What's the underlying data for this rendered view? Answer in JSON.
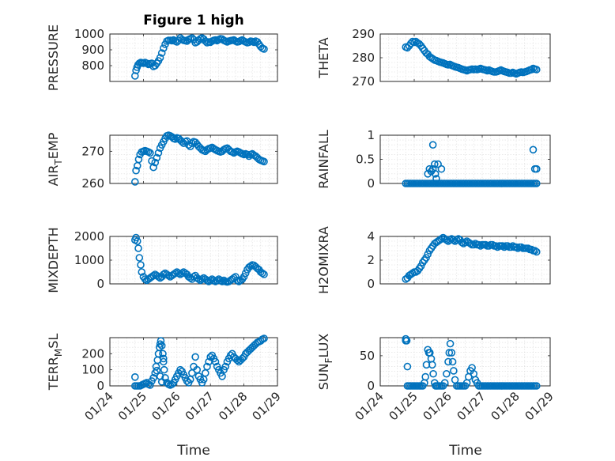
{
  "figure_title": "Figure 1 high",
  "marker_color": "#0072BD",
  "time_axis": {
    "label": "Time",
    "ticks": [
      "01/24",
      "01/25",
      "01/26",
      "01/27",
      "01/28",
      "01/29"
    ],
    "range_days": [
      0,
      5
    ]
  },
  "chart_data": [
    {
      "type": "scatter",
      "id": "pressure",
      "ylabel": "PRESSURE",
      "title": "Figure 1 high",
      "ylim": [
        700,
        1000
      ],
      "yticks": [
        800,
        900,
        1000
      ],
      "grid": true,
      "x": [
        0.75,
        0.78,
        0.81,
        0.84,
        0.88,
        0.92,
        0.96,
        1.0,
        1.05,
        1.1,
        1.15,
        1.2,
        1.25,
        1.3,
        1.35,
        1.4,
        1.45,
        1.5,
        1.55,
        1.6,
        1.65,
        1.7,
        1.75,
        1.8,
        1.85,
        1.9,
        1.95,
        2.0,
        2.05,
        2.1,
        2.15,
        2.2,
        2.25,
        2.3,
        2.35,
        2.4,
        2.45,
        2.5,
        2.55,
        2.6,
        2.65,
        2.7,
        2.75,
        2.8,
        2.85,
        2.9,
        2.95,
        3.0,
        3.05,
        3.1,
        3.15,
        3.2,
        3.25,
        3.3,
        3.35,
        3.4,
        3.45,
        3.5,
        3.55,
        3.6,
        3.65,
        3.7,
        3.75,
        3.8,
        3.85,
        3.9,
        3.95,
        4.0,
        4.05,
        4.1,
        4.15,
        4.2,
        4.25,
        4.3,
        4.35,
        4.4,
        4.45,
        4.5,
        4.55,
        4.6
      ],
      "y": [
        735,
        770,
        790,
        805,
        815,
        820,
        818,
        815,
        820,
        815,
        808,
        812,
        815,
        795,
        800,
        815,
        830,
        850,
        880,
        910,
        935,
        955,
        960,
        960,
        958,
        962,
        955,
        950,
        960,
        975,
        965,
        960,
        958,
        955,
        965,
        970,
        975,
        965,
        945,
        950,
        960,
        970,
        975,
        968,
        955,
        945,
        950,
        948,
        955,
        960,
        962,
        958,
        965,
        970,
        968,
        960,
        955,
        950,
        955,
        958,
        960,
        962,
        955,
        950,
        952,
        958,
        962,
        955,
        950,
        945,
        948,
        955,
        952,
        948,
        955,
        950,
        935,
        920,
        910,
        905
      ]
    },
    {
      "type": "scatter",
      "id": "theta",
      "ylabel": "THETA",
      "ylim": [
        270,
        290
      ],
      "yticks": [
        270,
        280,
        290
      ],
      "grid": true,
      "x": [
        0.75,
        0.8,
        0.85,
        0.9,
        0.95,
        1.0,
        1.05,
        1.1,
        1.15,
        1.2,
        1.25,
        1.3,
        1.35,
        1.4,
        1.45,
        1.5,
        1.55,
        1.6,
        1.65,
        1.7,
        1.75,
        1.8,
        1.85,
        1.9,
        1.95,
        2.0,
        2.05,
        2.1,
        2.15,
        2.2,
        2.25,
        2.3,
        2.35,
        2.4,
        2.45,
        2.5,
        2.55,
        2.6,
        2.65,
        2.7,
        2.75,
        2.8,
        2.85,
        2.9,
        2.95,
        3.0,
        3.05,
        3.1,
        3.15,
        3.2,
        3.25,
        3.3,
        3.35,
        3.4,
        3.45,
        3.5,
        3.55,
        3.6,
        3.65,
        3.7,
        3.75,
        3.8,
        3.85,
        3.9,
        3.95,
        4.0,
        4.05,
        4.1,
        4.15,
        4.2,
        4.25,
        4.3,
        4.35,
        4.4,
        4.45,
        4.5,
        4.55,
        4.6
      ],
      "y": [
        284.5,
        284.2,
        285.0,
        286.0,
        286.8,
        286.5,
        286.8,
        286.2,
        285.8,
        285.0,
        284.0,
        283.0,
        282.0,
        281.5,
        280.5,
        280.0,
        279.5,
        279.0,
        278.8,
        278.5,
        278.2,
        278.0,
        277.8,
        277.5,
        277.2,
        277.0,
        277.2,
        276.8,
        276.5,
        276.2,
        276.0,
        275.8,
        275.5,
        275.2,
        275.0,
        274.8,
        274.5,
        274.8,
        275.0,
        275.2,
        275.0,
        275.2,
        275.0,
        275.2,
        275.5,
        275.2,
        275.0,
        274.8,
        274.5,
        274.8,
        274.5,
        274.2,
        274.0,
        274.0,
        274.2,
        274.5,
        274.8,
        274.5,
        274.2,
        274.0,
        273.8,
        273.5,
        273.5,
        273.8,
        273.5,
        273.2,
        273.5,
        273.8,
        274.0,
        273.8,
        274.0,
        274.2,
        274.5,
        274.8,
        275.0,
        275.5,
        275.2,
        275.0
      ]
    },
    {
      "type": "scatter",
      "id": "air_temp",
      "ylabel": "AIR_TEMP",
      "ylim": [
        260,
        275
      ],
      "yticks": [
        260,
        270
      ],
      "grid": true,
      "x": [
        0.75,
        0.78,
        0.82,
        0.86,
        0.9,
        0.95,
        1.0,
        1.05,
        1.1,
        1.15,
        1.2,
        1.25,
        1.3,
        1.35,
        1.4,
        1.45,
        1.5,
        1.55,
        1.6,
        1.65,
        1.7,
        1.75,
        1.8,
        1.85,
        1.9,
        1.95,
        2.0,
        2.05,
        2.1,
        2.15,
        2.2,
        2.25,
        2.3,
        2.35,
        2.4,
        2.45,
        2.5,
        2.55,
        2.6,
        2.65,
        2.7,
        2.75,
        2.8,
        2.85,
        2.9,
        2.95,
        3.0,
        3.05,
        3.1,
        3.15,
        3.2,
        3.25,
        3.3,
        3.35,
        3.4,
        3.45,
        3.5,
        3.55,
        3.6,
        3.65,
        3.7,
        3.75,
        3.8,
        3.85,
        3.9,
        3.95,
        4.0,
        4.05,
        4.1,
        4.15,
        4.2,
        4.25,
        4.3,
        4.35,
        4.4,
        4.45,
        4.5,
        4.55,
        4.6
      ],
      "y": [
        260.5,
        264.0,
        265.5,
        267.5,
        269.0,
        269.8,
        270.0,
        270.2,
        270.0,
        269.8,
        269.5,
        267.0,
        265.0,
        266.5,
        268.0,
        269.5,
        271.0,
        272.0,
        273.0,
        274.0,
        274.8,
        275.0,
        274.8,
        274.5,
        274.0,
        273.8,
        274.2,
        274.0,
        273.5,
        273.0,
        272.5,
        273.0,
        273.2,
        272.0,
        271.5,
        272.5,
        273.0,
        272.8,
        272.2,
        271.5,
        271.0,
        270.5,
        270.2,
        270.0,
        270.5,
        270.8,
        271.0,
        271.2,
        270.8,
        270.5,
        270.2,
        270.0,
        269.8,
        270.0,
        270.5,
        270.8,
        271.0,
        270.5,
        270.0,
        269.8,
        269.5,
        269.8,
        270.0,
        269.8,
        269.5,
        269.2,
        269.0,
        269.2,
        269.0,
        268.5,
        269.0,
        269.2,
        268.8,
        268.5,
        268.0,
        267.5,
        267.2,
        267.0,
        266.8
      ]
    },
    {
      "type": "scatter",
      "id": "rainfall",
      "ylabel": "RAINFALL",
      "ylim": [
        0,
        1
      ],
      "yticks": [
        0,
        0.5,
        1
      ],
      "ytick_labels": [
        "0",
        "0.5",
        "1"
      ],
      "grid": true,
      "x": [
        0.75,
        0.8,
        0.85,
        0.9,
        0.95,
        1.0,
        1.05,
        1.1,
        1.15,
        1.2,
        1.25,
        1.3,
        1.35,
        1.4,
        1.45,
        1.5,
        1.55,
        1.6,
        1.65,
        1.7,
        1.75,
        1.8,
        1.85,
        1.9,
        1.95,
        2.0,
        2.05,
        2.1,
        2.15,
        2.2,
        2.25,
        2.3,
        2.35,
        2.4,
        2.45,
        2.5,
        2.55,
        2.6,
        2.65,
        2.7,
        2.75,
        2.8,
        2.85,
        2.9,
        2.95,
        3.0,
        3.05,
        3.1,
        3.15,
        3.2,
        3.25,
        3.3,
        3.35,
        3.4,
        3.45,
        3.5,
        3.55,
        3.6,
        3.65,
        3.7,
        3.75,
        3.8,
        3.85,
        3.9,
        3.95,
        4.0,
        4.05,
        4.1,
        4.15,
        4.2,
        4.25,
        4.3,
        4.35,
        4.4,
        4.45,
        4.5,
        4.55,
        4.6,
        1.4,
        1.45,
        1.5,
        1.55,
        1.55,
        1.6,
        1.62,
        1.65,
        1.7,
        1.8,
        4.5,
        4.55,
        4.6
      ],
      "y": [
        0,
        0,
        0,
        0,
        0,
        0,
        0,
        0,
        0,
        0,
        0,
        0,
        0,
        0,
        0,
        0,
        0,
        0,
        0,
        0,
        0,
        0,
        0,
        0,
        0,
        0,
        0,
        0,
        0,
        0,
        0,
        0,
        0,
        0,
        0,
        0,
        0,
        0,
        0,
        0,
        0,
        0,
        0,
        0,
        0,
        0,
        0,
        0,
        0,
        0,
        0,
        0,
        0,
        0,
        0,
        0,
        0,
        0,
        0,
        0,
        0,
        0,
        0,
        0,
        0,
        0,
        0,
        0,
        0,
        0,
        0,
        0,
        0,
        0,
        0,
        0,
        0,
        0,
        0.2,
        0.3,
        0.25,
        0.3,
        0.8,
        0.4,
        0.2,
        0.1,
        0.4,
        0.3,
        0.7,
        0.3,
        0.3
      ]
    },
    {
      "type": "scatter",
      "id": "mixdepth",
      "ylabel": "MIXDEPTH",
      "ylim": [
        0,
        2000
      ],
      "yticks": [
        0,
        1000,
        2000
      ],
      "grid": true,
      "x": [
        0.75,
        0.78,
        0.82,
        0.85,
        0.88,
        0.92,
        0.95,
        1.0,
        1.05,
        1.1,
        1.15,
        1.2,
        1.25,
        1.3,
        1.35,
        1.4,
        1.45,
        1.5,
        1.55,
        1.6,
        1.65,
        1.7,
        1.75,
        1.8,
        1.85,
        1.9,
        1.95,
        2.0,
        2.05,
        2.1,
        2.15,
        2.2,
        2.25,
        2.3,
        2.35,
        2.4,
        2.45,
        2.5,
        2.55,
        2.6,
        2.65,
        2.7,
        2.75,
        2.8,
        2.85,
        2.9,
        2.95,
        3.0,
        3.05,
        3.1,
        3.15,
        3.2,
        3.25,
        3.3,
        3.35,
        3.4,
        3.45,
        3.5,
        3.55,
        3.6,
        3.65,
        3.7,
        3.75,
        3.8,
        3.85,
        3.9,
        3.95,
        4.0,
        4.05,
        4.1,
        4.15,
        4.2,
        4.25,
        4.3,
        4.35,
        4.4,
        4.45,
        4.5,
        4.55,
        4.6
      ],
      "y": [
        1850,
        1950,
        1800,
        1500,
        1100,
        800,
        500,
        300,
        200,
        150,
        200,
        250,
        300,
        350,
        400,
        350,
        300,
        250,
        300,
        400,
        450,
        400,
        350,
        300,
        350,
        400,
        450,
        500,
        450,
        400,
        450,
        500,
        450,
        400,
        300,
        250,
        200,
        300,
        350,
        250,
        200,
        150,
        200,
        250,
        200,
        150,
        100,
        150,
        200,
        150,
        100,
        150,
        200,
        150,
        100,
        150,
        100,
        80,
        100,
        150,
        200,
        250,
        300,
        150,
        100,
        150,
        200,
        300,
        450,
        600,
        700,
        750,
        800,
        780,
        720,
        650,
        600,
        500,
        450,
        400
      ]
    },
    {
      "type": "scatter",
      "id": "h2omixra",
      "ylabel": "H2OMIXRA",
      "ylim": [
        0,
        4
      ],
      "yticks": [
        0,
        2,
        4
      ],
      "grid": true,
      "x": [
        0.75,
        0.8,
        0.85,
        0.9,
        0.95,
        1.0,
        1.05,
        1.1,
        1.15,
        1.2,
        1.25,
        1.3,
        1.35,
        1.4,
        1.45,
        1.5,
        1.55,
        1.6,
        1.65,
        1.7,
        1.75,
        1.8,
        1.85,
        1.9,
        1.95,
        2.0,
        2.05,
        2.1,
        2.15,
        2.2,
        2.25,
        2.3,
        2.35,
        2.4,
        2.45,
        2.5,
        2.55,
        2.6,
        2.65,
        2.7,
        2.75,
        2.8,
        2.85,
        2.9,
        2.95,
        3.0,
        3.05,
        3.1,
        3.15,
        3.2,
        3.25,
        3.3,
        3.35,
        3.4,
        3.45,
        3.5,
        3.55,
        3.6,
        3.65,
        3.7,
        3.75,
        3.8,
        3.85,
        3.9,
        3.95,
        4.0,
        4.05,
        4.1,
        4.15,
        4.2,
        4.25,
        4.3,
        4.35,
        4.4,
        4.45,
        4.5,
        4.55,
        4.6
      ],
      "y": [
        0.4,
        0.5,
        0.7,
        0.8,
        0.9,
        1.0,
        1.0,
        1.1,
        1.3,
        1.5,
        1.8,
        2.0,
        2.2,
        2.5,
        2.8,
        3.0,
        3.2,
        3.4,
        3.5,
        3.6,
        3.7,
        3.8,
        3.9,
        3.8,
        3.7,
        3.6,
        3.7,
        3.8,
        3.7,
        3.6,
        3.7,
        3.8,
        3.7,
        3.5,
        3.4,
        3.5,
        3.6,
        3.5,
        3.4,
        3.3,
        3.3,
        3.4,
        3.3,
        3.3,
        3.2,
        3.3,
        3.3,
        3.3,
        3.2,
        3.2,
        3.3,
        3.3,
        3.2,
        3.2,
        3.1,
        3.2,
        3.2,
        3.2,
        3.1,
        3.2,
        3.2,
        3.1,
        3.1,
        3.2,
        3.1,
        3.1,
        3.0,
        3.1,
        3.1,
        3.0,
        3.0,
        3.0,
        3.0,
        2.9,
        2.9,
        2.8,
        2.8,
        2.7
      ]
    },
    {
      "type": "scatter",
      "id": "terr_msl",
      "ylabel": "TERR_MSL",
      "ylim": [
        0,
        300
      ],
      "yticks": [
        0,
        100,
        200
      ],
      "grid": true,
      "x": [
        0.75,
        0.8,
        0.85,
        0.9,
        0.95,
        1.0,
        1.05,
        1.1,
        1.15,
        1.2,
        1.25,
        1.3,
        1.35,
        1.38,
        1.42,
        1.45,
        1.48,
        1.5,
        1.52,
        1.55,
        1.58,
        1.6,
        1.62,
        1.65,
        1.7,
        1.75,
        1.8,
        1.85,
        1.9,
        1.95,
        2.0,
        2.05,
        2.1,
        2.15,
        2.2,
        2.25,
        2.3,
        2.35,
        2.4,
        2.45,
        2.5,
        2.55,
        2.6,
        2.65,
        2.7,
        2.75,
        2.8,
        2.85,
        2.9,
        2.95,
        3.0,
        3.05,
        3.1,
        3.15,
        3.2,
        3.25,
        3.3,
        3.35,
        3.4,
        3.45,
        3.5,
        3.55,
        3.6,
        3.65,
        3.7,
        3.75,
        3.8,
        3.85,
        3.9,
        3.95,
        4.0,
        4.05,
        4.1,
        4.15,
        4.2,
        4.25,
        4.3,
        4.35,
        4.4,
        4.45,
        4.5,
        4.55,
        4.6,
        0.75,
        1.4,
        1.5,
        1.55,
        1.6
      ],
      "y": [
        0,
        0,
        0,
        0,
        5,
        10,
        15,
        20,
        10,
        5,
        30,
        50,
        80,
        120,
        160,
        200,
        240,
        260,
        280,
        250,
        200,
        150,
        100,
        50,
        20,
        10,
        5,
        10,
        20,
        40,
        60,
        80,
        100,
        90,
        70,
        50,
        30,
        20,
        40,
        80,
        120,
        180,
        100,
        60,
        40,
        20,
        40,
        80,
        120,
        150,
        180,
        190,
        170,
        150,
        120,
        100,
        80,
        60,
        100,
        120,
        150,
        170,
        190,
        200,
        180,
        170,
        160,
        150,
        160,
        170,
        180,
        200,
        210,
        220,
        230,
        240,
        250,
        260,
        270,
        275,
        280,
        290,
        295,
        55,
        95,
        60,
        25,
        170
      ],
      "ylabel_display": "TERR_MSL"
    },
    {
      "type": "scatter",
      "id": "sun_flux",
      "ylabel": "SUN_FLUX",
      "ylim": [
        0,
        80
      ],
      "yticks": [
        0,
        50
      ],
      "grid": true,
      "x": [
        0.75,
        0.8,
        0.85,
        0.9,
        0.95,
        1.0,
        1.05,
        1.1,
        1.15,
        1.2,
        1.25,
        1.3,
        1.33,
        1.36,
        1.4,
        1.43,
        1.46,
        1.5,
        1.53,
        1.56,
        1.6,
        1.63,
        1.66,
        1.7,
        1.75,
        1.8,
        1.85,
        1.9,
        1.95,
        2.0,
        2.03,
        2.06,
        2.1,
        2.13,
        2.16,
        2.2,
        2.25,
        2.3,
        2.35,
        2.4,
        2.45,
        2.5,
        2.55,
        2.6,
        2.65,
        2.7,
        2.75,
        2.8,
        2.85,
        2.9,
        2.95,
        3.0,
        3.05,
        3.1,
        3.15,
        3.2,
        3.25,
        3.3,
        3.35,
        3.4,
        3.45,
        3.5,
        3.55,
        3.6,
        3.65,
        3.7,
        3.75,
        3.8,
        3.85,
        3.9,
        3.95,
        4.0,
        4.05,
        4.1,
        4.15,
        4.2,
        4.25,
        4.3,
        4.35,
        4.4,
        4.45,
        4.5,
        4.55,
        4.6,
        0.75,
        0.78,
        0.8
      ],
      "y": [
        75,
        32,
        0,
        0,
        0,
        0,
        0,
        0,
        0,
        0,
        0,
        5,
        15,
        35,
        60,
        55,
        55,
        45,
        35,
        20,
        5,
        0,
        0,
        0,
        0,
        0,
        0,
        5,
        20,
        40,
        55,
        70,
        55,
        40,
        25,
        10,
        0,
        0,
        0,
        0,
        0,
        0,
        5,
        15,
        25,
        30,
        20,
        10,
        5,
        0,
        0,
        0,
        0,
        0,
        0,
        0,
        0,
        0,
        0,
        0,
        0,
        0,
        0,
        0,
        0,
        0,
        0,
        0,
        0,
        0,
        0,
        0,
        0,
        0,
        0,
        0,
        0,
        0,
        0,
        0,
        0,
        0,
        0,
        0,
        78,
        75,
        0
      ]
    }
  ]
}
